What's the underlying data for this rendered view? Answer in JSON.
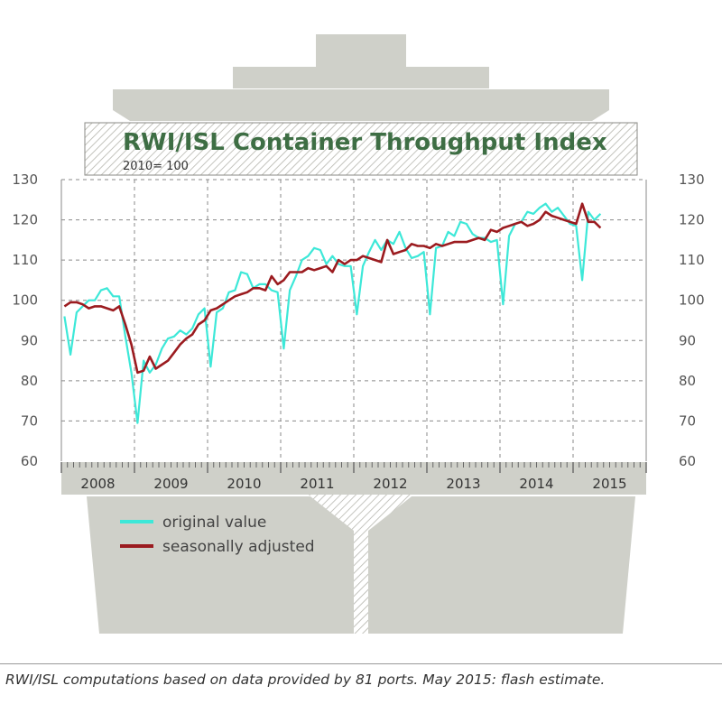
{
  "chart_data": {
    "type": "line",
    "title": "RWI/ISL Container Throughput Index",
    "subtitle": "2010= 100",
    "ylim": [
      60,
      130
    ],
    "yticks": [
      60,
      70,
      80,
      90,
      100,
      110,
      120,
      130
    ],
    "ytick_labels": [
      "60",
      "70",
      "80",
      "90",
      "100",
      "110",
      "120",
      "130"
    ],
    "year_labels": [
      "2008",
      "2009",
      "2010",
      "2011",
      "2012",
      "2013",
      "2014",
      "2015"
    ],
    "x_start": "2008-01",
    "grid": true,
    "legend_position": "bottom-left",
    "series": [
      {
        "name": "original value",
        "color": "#3de8d8",
        "values": [
          96,
          86.5,
          97,
          98.5,
          100,
          100,
          102.5,
          103,
          101,
          101,
          91,
          82,
          69.5,
          85,
          82,
          84,
          88,
          90.5,
          91,
          92.5,
          91.5,
          93,
          96.5,
          98,
          83.5,
          97,
          98,
          102,
          102.5,
          107,
          106.5,
          103,
          104,
          104,
          102.5,
          102,
          88,
          102.5,
          106,
          110,
          111,
          113,
          112.5,
          109,
          111,
          109,
          108.5,
          108.5,
          96.5,
          108.5,
          112,
          115,
          112.5,
          115,
          114,
          117,
          113,
          110.5,
          111,
          112,
          96.5,
          113,
          113.5,
          117,
          116,
          119.5,
          119,
          116.5,
          115.5,
          115.5,
          114.5,
          115,
          99,
          116,
          119,
          119.5,
          122,
          121.5,
          123,
          124,
          122,
          123,
          121,
          119,
          118.5,
          105,
          122,
          120,
          121.5
        ]
      },
      {
        "name": "seasonally adjusted",
        "color": "#9b1b1f",
        "values": [
          98.5,
          99.5,
          99.5,
          99,
          98,
          98.5,
          98.5,
          98,
          97.5,
          98.5,
          94,
          89,
          82,
          82.5,
          86,
          83,
          84,
          85,
          87,
          89,
          90.5,
          91.5,
          94,
          95,
          97.5,
          98,
          99,
          100,
          101,
          101.5,
          102,
          103,
          103,
          102.5,
          106,
          104,
          105,
          107,
          107,
          107,
          108,
          107.5,
          108,
          108.5,
          107,
          110,
          109,
          110,
          110,
          111,
          110.5,
          110,
          109.5,
          115,
          111.5,
          112,
          112.5,
          114,
          113.5,
          113.5,
          113,
          114,
          113.5,
          114,
          114.5,
          114.5,
          114.5,
          115,
          115.5,
          115,
          117.5,
          117,
          118,
          118.5,
          119,
          119.5,
          118.5,
          119,
          120,
          122,
          121,
          120.5,
          120,
          119.5,
          119,
          124,
          119.5,
          119.5,
          118
        ]
      }
    ]
  },
  "legend": [
    {
      "label": "original value",
      "color": "#3de8d8"
    },
    {
      "label": "seasonally adjusted",
      "color": "#9b1b1f"
    }
  ],
  "footer": "RWI/ISL computations based on data provided by 81 ports. May 2015: flash estimate."
}
